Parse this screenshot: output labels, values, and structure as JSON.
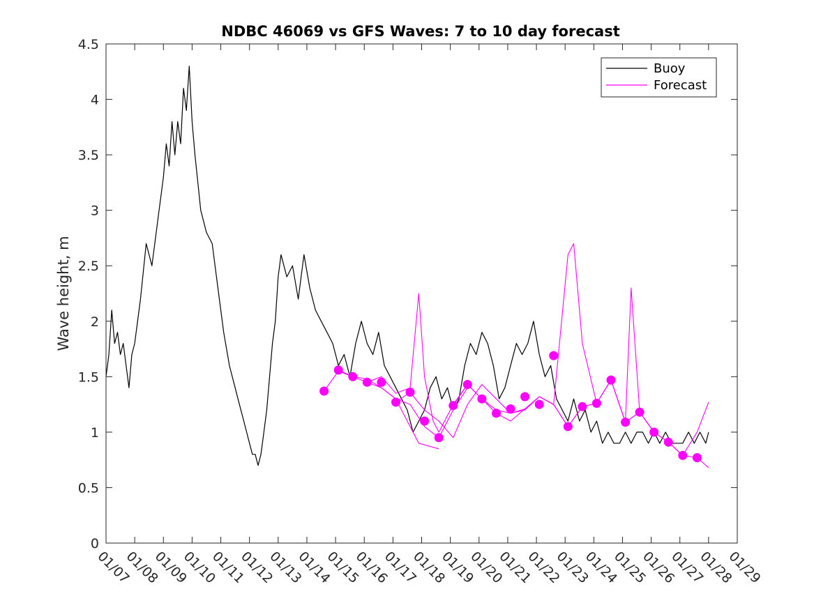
{
  "chart_data": {
    "type": "line",
    "title": "NDBC 46069 vs GFS Waves: 7 to 10 day forecast",
    "xlabel": "",
    "ylabel": "Wave height, m",
    "xlim": [
      "01/07",
      "01/29"
    ],
    "ylim": [
      0,
      4.5
    ],
    "x_tick_labels": [
      "01/07",
      "01/08",
      "01/09",
      "01/10",
      "01/11",
      "01/12",
      "01/13",
      "01/14",
      "01/15",
      "01/16",
      "01/17",
      "01/18",
      "01/19",
      "01/20",
      "01/21",
      "01/22",
      "01/23",
      "01/24",
      "01/25",
      "01/26",
      "01/27",
      "01/28",
      "01/29"
    ],
    "y_tick_labels": [
      "0",
      "0.5",
      "1",
      "1.5",
      "2",
      "2.5",
      "3",
      "3.5",
      "4",
      "4.5"
    ],
    "y_ticks": [
      0,
      0.5,
      1,
      1.5,
      2,
      2.5,
      3,
      3.5,
      4,
      4.5
    ],
    "grid": false,
    "legend": {
      "placement": "top-right",
      "entries": [
        "Buoy",
        "Forecast"
      ]
    },
    "colors": {
      "buoy": "#000000",
      "forecast": "#ff00ff",
      "axis": "#262626"
    },
    "x_units": "day offset from 01/07 00:00",
    "series": [
      {
        "name": "Buoy",
        "role": "buoy",
        "x": [
          0,
          0.1,
          0.2,
          0.3,
          0.4,
          0.5,
          0.6,
          0.7,
          0.8,
          0.9,
          1.0,
          1.2,
          1.4,
          1.6,
          1.8,
          2.0,
          2.1,
          2.2,
          2.3,
          2.4,
          2.5,
          2.6,
          2.7,
          2.8,
          2.9,
          3.0,
          3.1,
          3.3,
          3.5,
          3.7,
          3.9,
          4.1,
          4.3,
          4.5,
          4.6,
          4.8,
          5.0,
          5.1,
          5.2,
          5.3,
          5.4,
          5.5,
          5.6,
          5.7,
          5.8,
          5.9,
          6.0,
          6.1,
          6.3,
          6.5,
          6.7,
          6.9,
          7.1,
          7.3,
          7.5,
          7.7,
          7.9,
          8.1,
          8.3,
          8.5,
          8.7,
          8.9,
          9.1,
          9.3,
          9.5,
          9.7,
          9.9,
          10.1,
          10.3,
          10.5,
          10.7,
          10.9,
          11.1,
          11.3,
          11.5,
          11.7,
          11.9,
          12.1,
          12.3,
          12.5,
          12.7,
          12.9,
          13.1,
          13.3,
          13.5,
          13.7,
          13.9,
          14.1,
          14.3,
          14.5,
          14.7,
          14.9,
          15.1,
          15.3,
          15.5,
          15.7,
          15.9,
          16.1,
          16.3,
          16.5,
          16.7,
          16.9,
          17.1,
          17.3,
          17.5,
          17.7,
          17.9,
          18.1,
          18.3,
          18.5,
          18.7,
          18.9,
          19.1,
          19.3,
          19.5,
          19.7,
          19.9,
          20.1,
          20.3,
          20.5,
          20.7,
          20.9,
          21.0
        ],
        "values": [
          1.5,
          1.7,
          2.1,
          1.8,
          1.9,
          1.7,
          1.8,
          1.6,
          1.4,
          1.7,
          1.8,
          2.2,
          2.7,
          2.5,
          2.9,
          3.3,
          3.6,
          3.4,
          3.8,
          3.5,
          3.8,
          3.6,
          4.1,
          3.9,
          4.3,
          3.8,
          3.5,
          3.0,
          2.8,
          2.7,
          2.3,
          1.9,
          1.6,
          1.4,
          1.3,
          1.1,
          0.9,
          0.8,
          0.8,
          0.7,
          0.8,
          1.0,
          1.2,
          1.5,
          1.8,
          2.0,
          2.4,
          2.6,
          2.4,
          2.5,
          2.2,
          2.6,
          2.3,
          2.1,
          2.0,
          1.9,
          1.8,
          1.6,
          1.7,
          1.5,
          1.8,
          2.0,
          1.8,
          1.7,
          1.9,
          1.6,
          1.5,
          1.4,
          1.3,
          1.2,
          1.0,
          1.1,
          1.2,
          1.4,
          1.5,
          1.3,
          1.4,
          1.2,
          1.3,
          1.6,
          1.8,
          1.7,
          1.9,
          1.8,
          1.6,
          1.3,
          1.4,
          1.6,
          1.8,
          1.7,
          1.8,
          2.0,
          1.7,
          1.5,
          1.6,
          1.3,
          1.2,
          1.1,
          1.3,
          1.1,
          1.2,
          1.0,
          1.1,
          0.9,
          1.0,
          0.9,
          0.9,
          1.0,
          0.9,
          1.0,
          1.0,
          0.9,
          1.0,
          0.9,
          1.0,
          0.9,
          0.9,
          0.9,
          1.0,
          0.9,
          1.0,
          0.9,
          1.0
        ]
      },
      {
        "name": "Forecast",
        "role": "forecast",
        "x": [
          7.6,
          8.1,
          8.6,
          9.1,
          9.6,
          10.1,
          10.6,
          10.9,
          11.6
        ],
        "values": [
          1.37,
          1.55,
          1.5,
          1.48,
          1.4,
          1.3,
          1.05,
          0.9,
          0.85
        ]
      },
      {
        "name": "",
        "role": "forecast",
        "x": [
          8.1,
          8.6,
          9.1,
          9.6,
          10.1,
          10.6,
          11.1,
          11.6,
          12.1,
          12.6
        ],
        "values": [
          1.56,
          1.5,
          1.45,
          1.4,
          1.3,
          1.25,
          1.05,
          0.95,
          1.2,
          1.4
        ]
      },
      {
        "name": "",
        "role": "forecast",
        "x": [
          9.1,
          9.6,
          10.1,
          10.6,
          10.9,
          11.1,
          11.4,
          11.6,
          12.1,
          12.6,
          13.1,
          13.6,
          14.1
        ],
        "values": [
          1.45,
          1.5,
          1.35,
          1.4,
          2.25,
          1.5,
          1.1,
          1.0,
          1.25,
          1.43,
          1.3,
          1.2,
          1.17
        ]
      },
      {
        "name": "",
        "role": "forecast",
        "x": [
          10.1,
          10.6,
          11.1,
          11.6,
          12.1,
          12.6,
          13.1,
          13.6,
          14.1,
          14.6,
          15.1,
          15.6
        ],
        "values": [
          1.27,
          1.36,
          1.2,
          1.1,
          0.95,
          1.25,
          1.43,
          1.3,
          1.17,
          1.21,
          1.32,
          1.25
        ]
      },
      {
        "name": "",
        "role": "forecast",
        "x": [
          12.1,
          12.6,
          13.1,
          13.6,
          14.1,
          14.6,
          15.1,
          15.6,
          16.1,
          16.6,
          17.1,
          17.6
        ],
        "values": [
          1.24,
          1.43,
          1.3,
          1.17,
          1.1,
          1.21,
          1.32,
          1.25,
          1.05,
          1.23,
          1.26,
          1.47
        ]
      },
      {
        "name": "",
        "role": "forecast",
        "x": [
          14.1,
          14.6,
          15.1,
          15.6,
          16.1,
          16.3,
          16.6,
          17.1,
          17.6,
          18.1,
          18.6,
          19.1
        ],
        "values": [
          1.17,
          1.2,
          1.32,
          1.25,
          2.6,
          2.7,
          1.8,
          1.26,
          1.47,
          1.09,
          1.18,
          1.0
        ]
      },
      {
        "name": "",
        "role": "forecast",
        "x": [
          15.6,
          16.1,
          16.6,
          17.1,
          17.6,
          18.1,
          18.3,
          18.6,
          19.1,
          19.6,
          20.1,
          20.6,
          21.0
        ],
        "values": [
          1.25,
          1.05,
          1.23,
          1.26,
          1.47,
          1.09,
          2.3,
          1.18,
          1.0,
          0.91,
          0.79,
          0.77,
          0.68
        ]
      },
      {
        "name": "",
        "role": "forecast",
        "x": [
          17.6,
          18.1,
          18.6,
          19.1,
          19.6,
          20.1,
          20.6,
          21.0
        ],
        "values": [
          1.47,
          1.09,
          1.18,
          1.0,
          0.91,
          0.79,
          1.0,
          1.27
        ]
      }
    ],
    "forecast_markers": {
      "x": [
        7.6,
        8.1,
        8.6,
        9.1,
        9.6,
        10.1,
        10.6,
        11.1,
        11.6,
        12.1,
        12.6,
        13.1,
        13.6,
        14.1,
        14.6,
        15.1,
        15.6,
        16.1,
        16.6,
        17.1,
        17.6,
        18.1,
        18.6,
        19.1,
        19.6,
        20.1,
        20.6
      ],
      "values": [
        1.37,
        1.56,
        1.5,
        1.45,
        1.45,
        1.27,
        1.36,
        1.1,
        0.95,
        1.24,
        1.43,
        1.3,
        1.17,
        1.21,
        1.32,
        1.25,
        1.69,
        1.05,
        1.23,
        1.26,
        1.47,
        1.09,
        1.18,
        1.0,
        0.91,
        0.79,
        0.77
      ]
    }
  }
}
